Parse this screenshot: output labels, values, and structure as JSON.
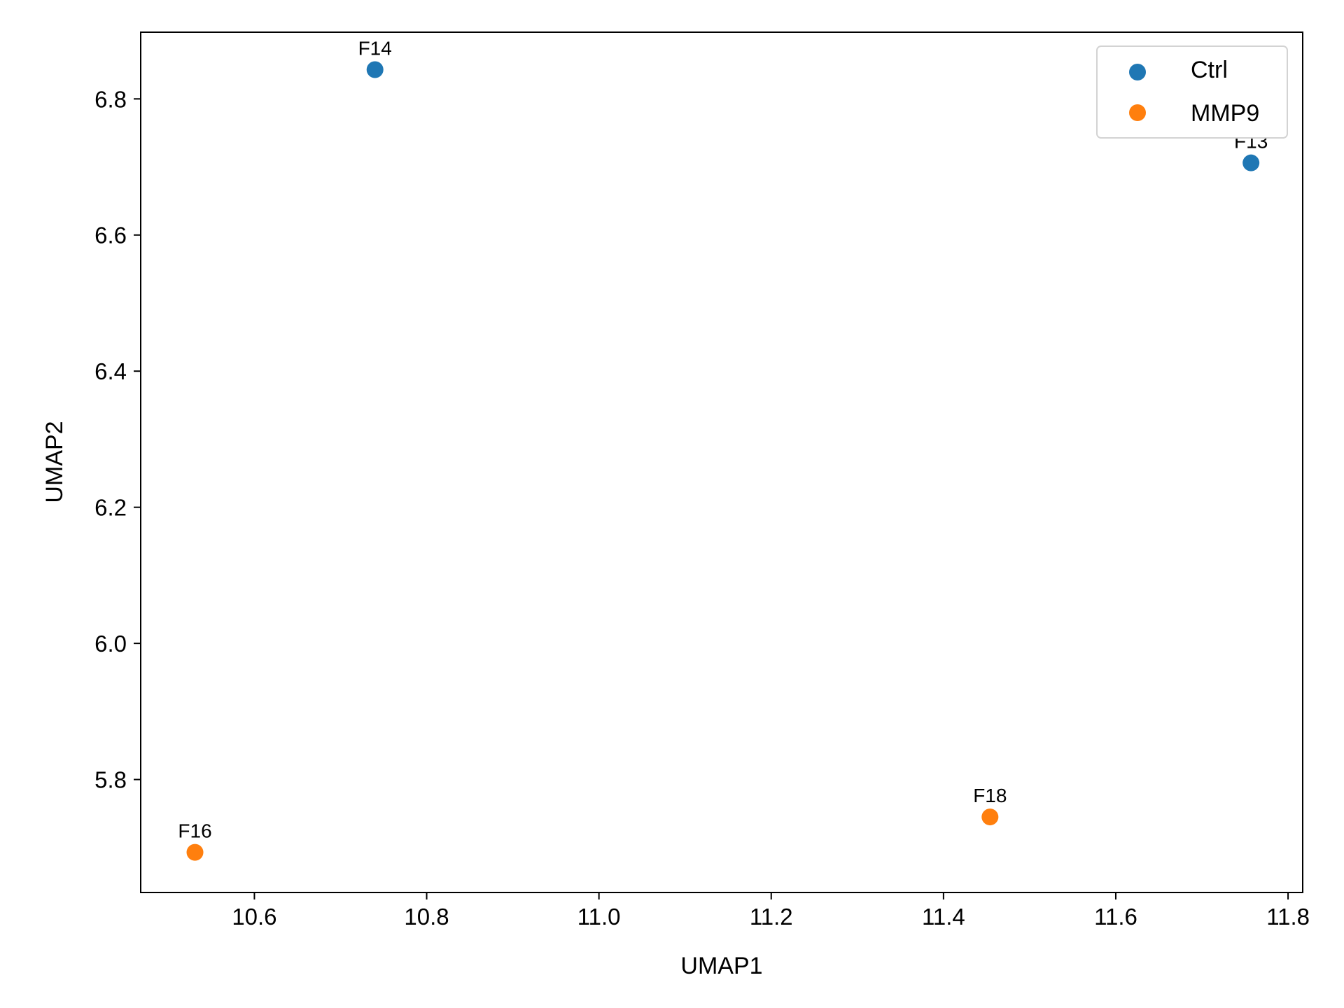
{
  "chart_data": {
    "type": "scatter",
    "title": "",
    "xlabel": "UMAP1",
    "ylabel": "UMAP2",
    "xlim": [
      10.468,
      11.817
    ],
    "ylim": [
      5.634,
      6.898
    ],
    "xticks": [
      10.6,
      10.8,
      11.0,
      11.2,
      11.4,
      11.6,
      11.8
    ],
    "xtick_labels": [
      "10.6",
      "10.8",
      "11.0",
      "11.2",
      "11.4",
      "11.6",
      "11.8"
    ],
    "yticks": [
      5.8,
      6.0,
      6.2,
      6.4,
      6.6,
      6.8
    ],
    "ytick_labels": [
      "5.8",
      "6.0",
      "6.2",
      "6.4",
      "6.6",
      "6.8"
    ],
    "grid": false,
    "legend_position": "top-right",
    "series": [
      {
        "name": "Ctrl",
        "color": "#1f77b4",
        "points": [
          {
            "label": "F14",
            "x": 10.74,
            "y": 6.843
          },
          {
            "label": "F13",
            "x": 11.757,
            "y": 6.706
          }
        ]
      },
      {
        "name": "MMP9",
        "color": "#ff7f0e",
        "points": [
          {
            "label": "F16",
            "x": 10.531,
            "y": 5.693
          },
          {
            "label": "F18",
            "x": 11.454,
            "y": 5.745
          }
        ]
      }
    ]
  }
}
